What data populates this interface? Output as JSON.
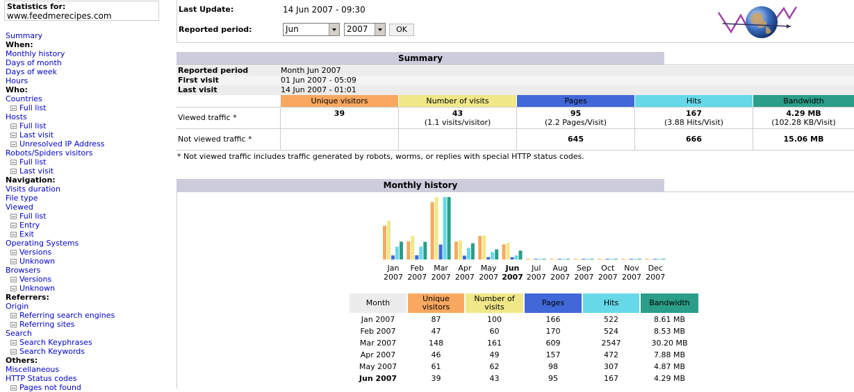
{
  "sidebar": {
    "stats_label": "Statistics for:",
    "site": "www.feedmerecipes.com",
    "items": [
      {
        "label": "Summary",
        "type": "link"
      },
      {
        "label": "When:",
        "type": "head"
      },
      {
        "label": "Monthly history",
        "type": "link"
      },
      {
        "label": "Days of month",
        "type": "link"
      },
      {
        "label": "Days of week",
        "type": "link"
      },
      {
        "label": "Hours",
        "type": "link"
      },
      {
        "label": "Who:",
        "type": "head"
      },
      {
        "label": "Countries",
        "type": "link"
      },
      {
        "label": "Full list",
        "type": "sub"
      },
      {
        "label": "Hosts",
        "type": "link"
      },
      {
        "label": "Full list",
        "type": "sub"
      },
      {
        "label": "Last visit",
        "type": "sub"
      },
      {
        "label": "Unresolved IP Address",
        "type": "sub"
      },
      {
        "label": "Robots/Spiders visitors",
        "type": "link"
      },
      {
        "label": "Full list",
        "type": "sub"
      },
      {
        "label": "Last visit",
        "type": "sub"
      },
      {
        "label": "Navigation:",
        "type": "head"
      },
      {
        "label": "Visits duration",
        "type": "link"
      },
      {
        "label": "File type",
        "type": "link"
      },
      {
        "label": "Viewed",
        "type": "link"
      },
      {
        "label": "Full list",
        "type": "sub"
      },
      {
        "label": "Entry",
        "type": "sub"
      },
      {
        "label": "Exit",
        "type": "sub"
      },
      {
        "label": "Operating Systems",
        "type": "link"
      },
      {
        "label": "Versions",
        "type": "sub"
      },
      {
        "label": "Unknown",
        "type": "sub"
      },
      {
        "label": "Browsers",
        "type": "link"
      },
      {
        "label": "Versions",
        "type": "sub"
      },
      {
        "label": "Unknown",
        "type": "sub"
      },
      {
        "label": "Referrers:",
        "type": "head"
      },
      {
        "label": "Origin",
        "type": "link"
      },
      {
        "label": "Referring search engines",
        "type": "sub"
      },
      {
        "label": "Referring sites",
        "type": "sub"
      },
      {
        "label": "Search",
        "type": "link"
      },
      {
        "label": "Search Keyphrases",
        "type": "sub"
      },
      {
        "label": "Search Keywords",
        "type": "sub"
      },
      {
        "label": "Others:",
        "type": "head"
      },
      {
        "label": "Miscellaneous",
        "type": "link"
      },
      {
        "label": "HTTP Status codes",
        "type": "link"
      },
      {
        "label": "Pages not found",
        "type": "sub"
      }
    ]
  },
  "header": {
    "last_update_label": "Last Update:",
    "last_update_value": "14 Jun 2007 - 09:30",
    "period_label": "Reported period:",
    "month_select": "Jun",
    "year_select": "2007",
    "ok_label": "OK"
  },
  "summary": {
    "title": "Summary",
    "reported_period_label": "Reported period",
    "reported_period_value": "Month Jun 2007",
    "first_visit_label": "First visit",
    "first_visit_value": "01 Jun 2007 - 05:09",
    "last_visit_label": "Last visit",
    "last_visit_value": "14 Jun 2007 - 01:01",
    "columns": [
      "Unique visitors",
      "Number of visits",
      "Pages",
      "Hits",
      "Bandwidth"
    ],
    "viewed_label": "Viewed traffic *",
    "viewed": {
      "unique": "39",
      "visits": "43",
      "visits_sub": "(1.1 visits/visitor)",
      "pages": "95",
      "pages_sub": "(2.2 Pages/Visit)",
      "hits": "167",
      "hits_sub": "(3.88 Hits/Visit)",
      "bandwidth": "4.29 MB",
      "bandwidth_sub": "(102.28 KB/Visit)"
    },
    "not_viewed_label": "Not viewed traffic *",
    "not_viewed": {
      "pages": "645",
      "hits": "666",
      "bandwidth": "15.06 MB"
    },
    "footnote": "* Not viewed traffic includes traffic generated by robots, worms, or replies with special HTTP status codes."
  },
  "colors": {
    "unique": "#f8a860",
    "visits": "#f0e888",
    "pages": "#4068d8",
    "hits": "#66d8e8",
    "bandwidth": "#2a9e88",
    "section_title": "#ccccdd"
  },
  "monthly": {
    "title": "Monthly history",
    "table_headers": [
      "Month",
      "Unique visitors",
      "Number of visits",
      "Pages",
      "Hits",
      "Bandwidth"
    ],
    "rows": [
      {
        "month": "Jan 2007",
        "unique": "87",
        "visits": "100",
        "pages": "166",
        "hits": "522",
        "bandwidth": "8.61 MB"
      },
      {
        "month": "Feb 2007",
        "unique": "47",
        "visits": "60",
        "pages": "170",
        "hits": "524",
        "bandwidth": "8.53 MB"
      },
      {
        "month": "Mar 2007",
        "unique": "148",
        "visits": "161",
        "pages": "609",
        "hits": "2547",
        "bandwidth": "30.20 MB"
      },
      {
        "month": "Apr 2007",
        "unique": "46",
        "visits": "49",
        "pages": "157",
        "hits": "472",
        "bandwidth": "7.88 MB"
      },
      {
        "month": "May 2007",
        "unique": "61",
        "visits": "62",
        "pages": "98",
        "hits": "307",
        "bandwidth": "4.87 MB"
      },
      {
        "month": "Jun 2007",
        "unique": "39",
        "visits": "43",
        "pages": "95",
        "hits": "167",
        "bandwidth": "4.29 MB"
      }
    ]
  },
  "chart_data": {
    "type": "bar",
    "categories": [
      "Jan",
      "Feb",
      "Mar",
      "Apr",
      "May",
      "Jun",
      "Jul",
      "Aug",
      "Sep",
      "Oct",
      "Nov",
      "Dec"
    ],
    "category_year": "2007",
    "current_month": "Jun",
    "series": [
      {
        "name": "Unique visitors",
        "values": [
          87,
          47,
          148,
          46,
          61,
          39,
          0,
          0,
          0,
          0,
          0,
          0
        ]
      },
      {
        "name": "Number of visits",
        "values": [
          100,
          60,
          161,
          49,
          62,
          43,
          0,
          0,
          0,
          0,
          0,
          0
        ]
      },
      {
        "name": "Pages",
        "values": [
          166,
          170,
          609,
          157,
          98,
          95,
          0,
          0,
          0,
          0,
          0,
          0
        ]
      },
      {
        "name": "Hits",
        "values": [
          522,
          524,
          2547,
          472,
          307,
          167,
          0,
          0,
          0,
          0,
          0,
          0
        ]
      },
      {
        "name": "Bandwidth",
        "values": [
          8.61,
          8.53,
          30.2,
          7.88,
          4.87,
          4.29,
          0,
          0,
          0,
          0,
          0,
          0
        ]
      }
    ]
  }
}
